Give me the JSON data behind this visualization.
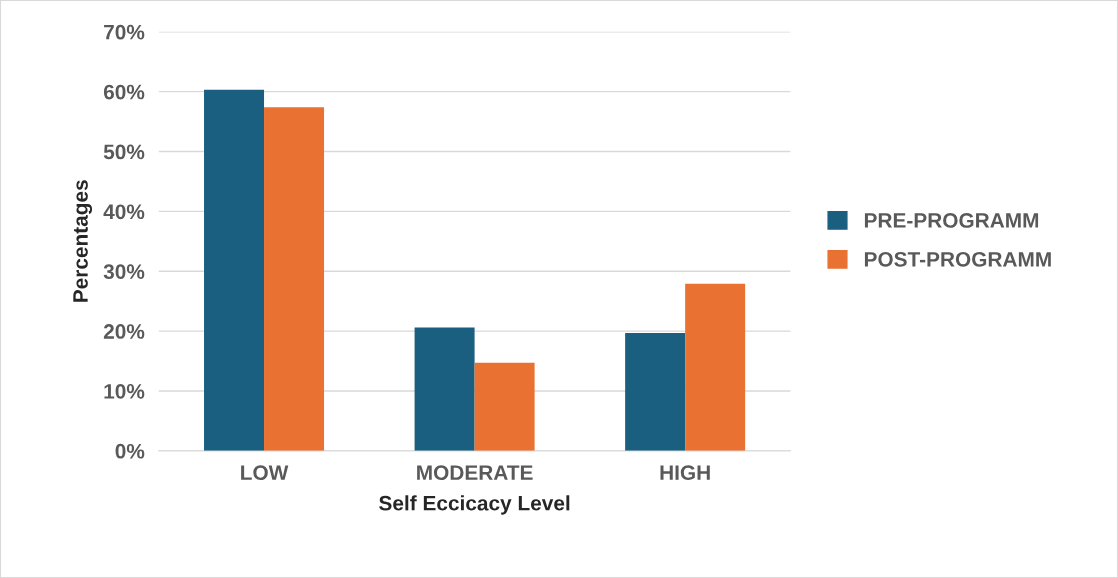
{
  "chart_data": {
    "type": "bar",
    "xlabel": "Self Eccicacy Level",
    "ylabel": "Percentages",
    "categories": [
      "LOW",
      "MODERATE",
      "HIGH"
    ],
    "series": [
      {
        "name": "PRE-PROGRAMM",
        "color": "#1a5f80",
        "values": [
          60.3,
          20.6,
          19.7
        ]
      },
      {
        "name": "POST-PROGRAMM",
        "color": "#e97132",
        "values": [
          57.4,
          14.7,
          27.9
        ]
      }
    ],
    "ylim": [
      0,
      70
    ],
    "yticks": [
      {
        "value": 0,
        "label": "0%"
      },
      {
        "value": 10,
        "label": "10%"
      },
      {
        "value": 20,
        "label": "20%"
      },
      {
        "value": 30,
        "label": "30%"
      },
      {
        "value": 40,
        "label": "40%"
      },
      {
        "value": 50,
        "label": "50%"
      },
      {
        "value": 60,
        "label": "60%"
      },
      {
        "value": 70,
        "label": "70%"
      }
    ],
    "grid": "y",
    "legend": "right"
  }
}
